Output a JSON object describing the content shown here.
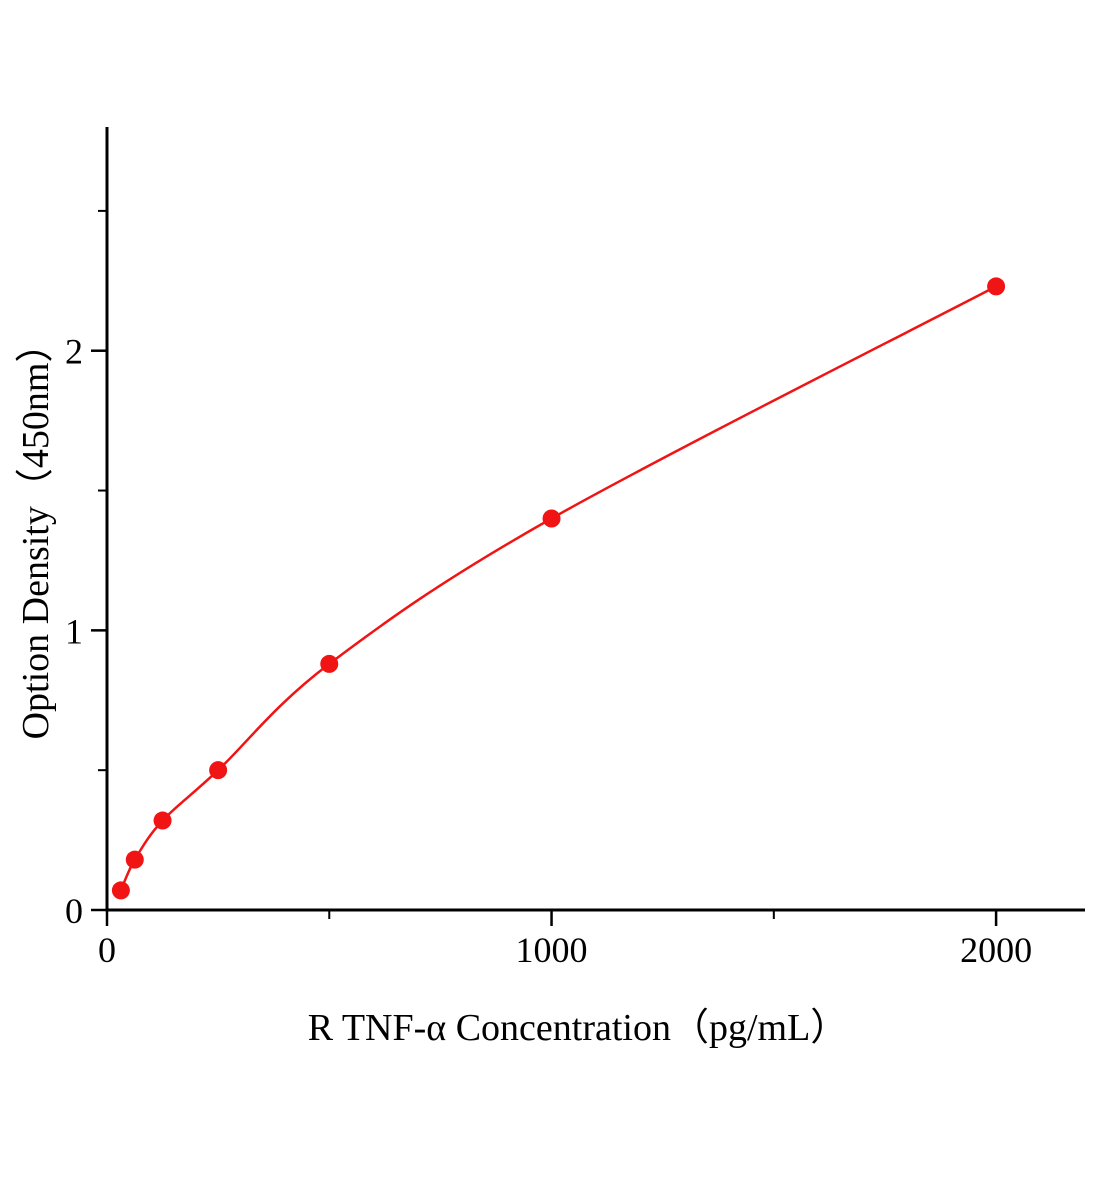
{
  "chart_data": {
    "type": "scatter",
    "x": [
      31.25,
      62.5,
      125,
      250,
      500,
      1000,
      2000
    ],
    "y": [
      0.07,
      0.18,
      0.32,
      0.5,
      0.88,
      1.4,
      2.23
    ],
    "title": "",
    "xlabel": "R TNF-α Concentration（pg/mL）",
    "ylabel": "Option Density（450nm）",
    "xlim": [
      0,
      2200
    ],
    "ylim": [
      0,
      2.8
    ],
    "x_ticks": [
      0,
      1000,
      2000
    ],
    "x_minor_ticks": [
      500,
      1500
    ],
    "y_ticks": [
      0,
      1,
      2
    ],
    "y_minor_ticks": [
      0.5,
      1.5,
      2.5
    ],
    "grid": false,
    "legend": "none",
    "marker": "circle",
    "line": "smooth",
    "series_color": "#f01414",
    "axis_color": "#000000"
  }
}
